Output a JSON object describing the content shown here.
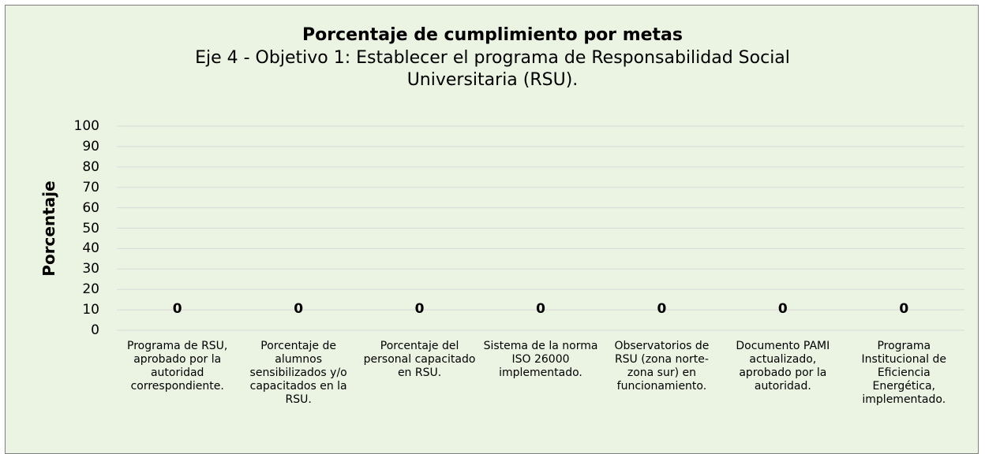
{
  "chart_data": {
    "type": "bar",
    "title": "Porcentaje de cumplimiento por metas",
    "subtitle": "Eje 4 - Objetivo 1: Establecer el programa de Responsabilidad Social Universitaria (RSU).",
    "y_label": "Porcentaje",
    "categories": [
      "Programa de RSU, aprobado por la autoridad correspondiente.",
      "Porcentaje de alumnos sensibilizados y/o capacitados en la RSU.",
      "Porcentaje del personal capacitado en RSU.",
      "Sistema de la norma ISO 26000 implementado.",
      "Observatorios de RSU (zona norte-zona sur) en funcionamiento.",
      "Documento PAMI actualizado, aprobado por la autoridad.",
      "Programa Institucional de Eficiencia Energética, implementado."
    ],
    "values": [
      0,
      0,
      0,
      0,
      0,
      0,
      0
    ],
    "color": "#5b9bd5",
    "ylim": [
      0,
      100
    ],
    "yticks": [
      0,
      10,
      20,
      30,
      40,
      50,
      60,
      70,
      80,
      90,
      100
    ],
    "grid": true
  }
}
